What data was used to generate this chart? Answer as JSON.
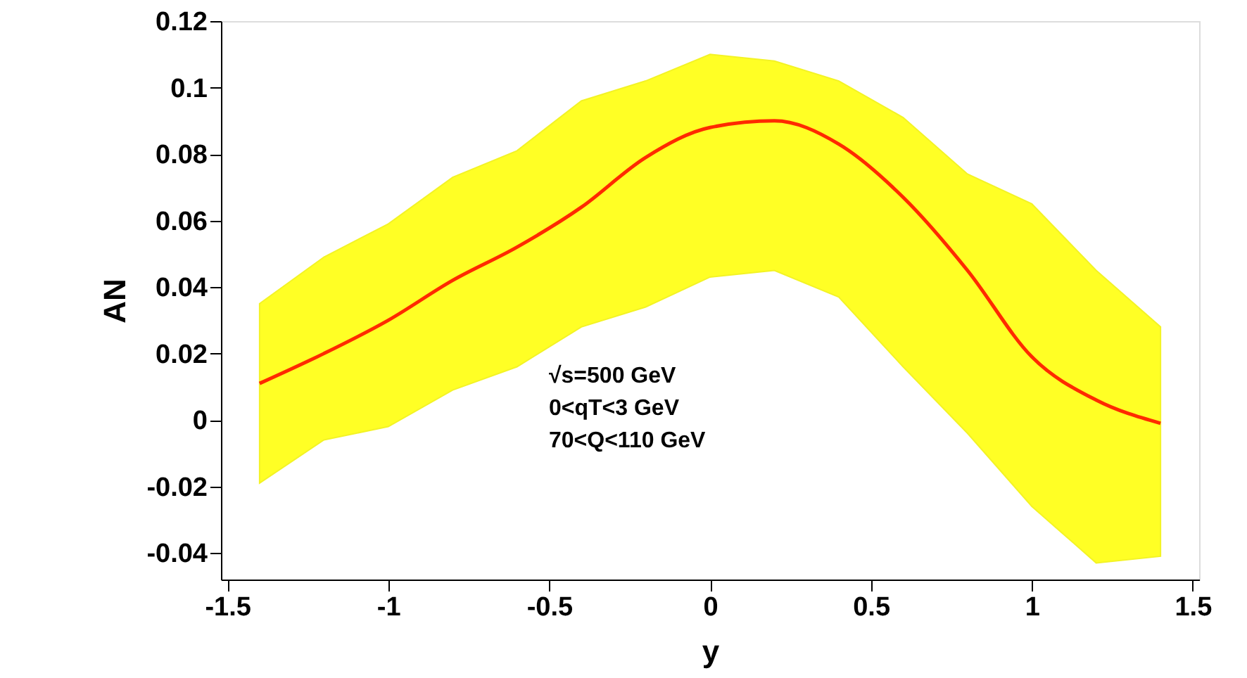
{
  "chart_data": {
    "type": "line",
    "xlabel": "y",
    "ylabel": "AN",
    "annotations": [
      "√s=500 GeV",
      "0<qT<3 GeV",
      "70<Q<110 GeV"
    ],
    "series": [
      {
        "color": "#ff2a00",
        "x": [
          -1.4,
          -1.2,
          -1.0,
          -0.8,
          -0.6,
          -0.4,
          -0.2,
          0.0,
          0.2,
          0.4,
          0.6,
          0.8,
          1.0,
          1.2,
          1.4
        ],
        "values": [
          0.011,
          0.02,
          0.03,
          0.042,
          0.052,
          0.064,
          0.079,
          0.088,
          0.09,
          0.083,
          0.067,
          0.045,
          0.019,
          0.006,
          -0.001
        ],
        "lower": [
          -0.019,
          -0.006,
          -0.002,
          0.009,
          0.016,
          0.028,
          0.034,
          0.043,
          0.045,
          0.037,
          0.016,
          -0.004,
          -0.026,
          -0.043,
          -0.041
        ],
        "upper": [
          0.035,
          0.049,
          0.059,
          0.073,
          0.081,
          0.096,
          0.102,
          0.11,
          0.108,
          0.102,
          0.091,
          0.074,
          0.065,
          0.045,
          0.028
        ]
      }
    ],
    "xlim": [
      -1.52,
      1.52
    ],
    "xticks": [
      -1.5,
      -1,
      -0.5,
      0,
      0.5,
      1,
      1.5
    ],
    "ylim": [
      -0.048,
      0.12
    ],
    "yticks": [
      -0.04,
      -0.02,
      0,
      0.02,
      0.04,
      0.06,
      0.08,
      0.1,
      0.12
    ],
    "grid": false,
    "marker": "none",
    "line_style": "solid"
  }
}
